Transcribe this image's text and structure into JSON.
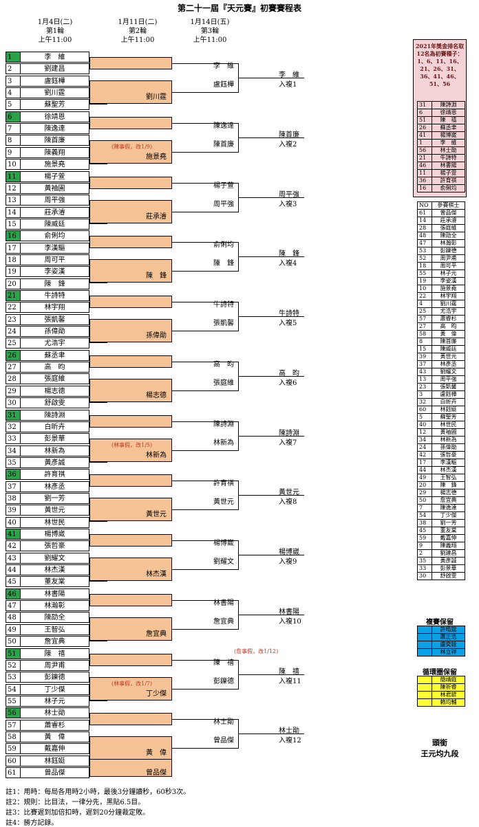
{
  "title": "第二十一屆『天元賽』初賽賽程表",
  "rounds": [
    {
      "date": "1月4日(二)",
      "name": "第1輪",
      "time": "上午11:00"
    },
    {
      "date": "1月11日(二)",
      "name": "第2輪",
      "time": "上午11:00"
    },
    {
      "date": "1月14日(五)",
      "name": "第3輪",
      "time": "上午11:00"
    }
  ],
  "players": [
    {
      "n": "1",
      "name": "李　維",
      "seed": true
    },
    {
      "n": "2",
      "name": "劉建昌"
    },
    {
      "n": "3",
      "name": "盧鈺樺"
    },
    {
      "n": "4",
      "name": "劉川霆"
    },
    {
      "n": "5",
      "name": "蘇聖芳"
    },
    {
      "n": "6",
      "name": "徐靖恩",
      "seed": true
    },
    {
      "n": "7",
      "name": "陳逸達"
    },
    {
      "n": "8",
      "name": "陳首廉"
    },
    {
      "n": "9",
      "name": "陳義翔"
    },
    {
      "n": "10",
      "name": "施景堯"
    },
    {
      "n": "11",
      "name": "楊子萱",
      "seed": true
    },
    {
      "n": "12",
      "name": "黃袖圃"
    },
    {
      "n": "13",
      "name": "周平強"
    },
    {
      "n": "14",
      "name": "莊承濬"
    },
    {
      "n": "15",
      "name": "陳威廷"
    },
    {
      "n": "16",
      "name": "俞俐均",
      "seed": true
    },
    {
      "n": "17",
      "name": "李漢驅"
    },
    {
      "n": "18",
      "name": "周可平"
    },
    {
      "n": "19",
      "name": "李姿漢"
    },
    {
      "n": "20",
      "name": "陳　鋒"
    },
    {
      "n": "21",
      "name": "牛詩特",
      "seed": true
    },
    {
      "n": "22",
      "name": "林宇翔"
    },
    {
      "n": "23",
      "name": "張凱馨"
    },
    {
      "n": "24",
      "name": "孫偉勛"
    },
    {
      "n": "25",
      "name": "尤浩宇"
    },
    {
      "n": "26",
      "name": "蘇丞聿",
      "seed": true
    },
    {
      "n": "27",
      "name": "高　昀"
    },
    {
      "n": "28",
      "name": "張庭維"
    },
    {
      "n": "29",
      "name": "楊志德"
    },
    {
      "n": "30",
      "name": "舒啟雯"
    },
    {
      "n": "31",
      "name": "陳詩淵",
      "seed": true
    },
    {
      "n": "32",
      "name": "白昕卉"
    },
    {
      "n": "33",
      "name": "彭景華"
    },
    {
      "n": "34",
      "name": "林新為"
    },
    {
      "n": "35",
      "name": "黃彥誠"
    },
    {
      "n": "36",
      "name": "許育祺",
      "seed": true
    },
    {
      "n": "37",
      "name": "林彥丞"
    },
    {
      "n": "38",
      "name": "劉一芳"
    },
    {
      "n": "39",
      "name": "黃世元"
    },
    {
      "n": "40",
      "name": "林世民"
    },
    {
      "n": "41",
      "name": "楊博崴",
      "seed": true
    },
    {
      "n": "42",
      "name": "張哲豪"
    },
    {
      "n": "43",
      "name": "劉耀文"
    },
    {
      "n": "44",
      "name": "林杰漢"
    },
    {
      "n": "45",
      "name": "董友棠"
    },
    {
      "n": "46",
      "name": "林書陽",
      "seed": true
    },
    {
      "n": "47",
      "name": "林瀚彰"
    },
    {
      "n": "48",
      "name": "陳劭全"
    },
    {
      "n": "49",
      "name": "王智弘"
    },
    {
      "n": "50",
      "name": "詹宜典"
    },
    {
      "n": "51",
      "name": "陳　禧",
      "seed": true
    },
    {
      "n": "52",
      "name": "周尹甫"
    },
    {
      "n": "53",
      "name": "彭鑠德"
    },
    {
      "n": "54",
      "name": "丁少傑"
    },
    {
      "n": "55",
      "name": "林子元"
    },
    {
      "n": "56",
      "name": "林士勛",
      "seed": true
    },
    {
      "n": "57",
      "name": "蕭睿杉"
    },
    {
      "n": "58",
      "name": "黃　偉"
    },
    {
      "n": "59",
      "name": "戴嘉伸"
    },
    {
      "n": "60",
      "name": "林鈺娗"
    },
    {
      "n": "61",
      "name": "曾品傑"
    }
  ],
  "groups": [
    {
      "r2": "劉川霆",
      "r3a": "李　維",
      "r3b": "盧鈺樺",
      "r4": "李　維",
      "adv": "入複1"
    },
    {
      "r2": "施景堯",
      "r3a": "陳逸達",
      "r3b": "陳首廉",
      "r4": "陳首廉",
      "adv": "入複2",
      "note": "(陳事假，改1/9)"
    },
    {
      "r2": "莊承濬",
      "r3a": "楊子萱",
      "r3b": "周平強",
      "r4": "周平強",
      "adv": "入複3"
    },
    {
      "r2": "陳　鋒",
      "r3a": "俞俐均",
      "r3b": "陳　鋒",
      "r4": "陳　鋒",
      "adv": "入複4"
    },
    {
      "r2": "孫偉勛",
      "r3a": "牛詩特",
      "r3b": "張凱馨",
      "r4": "牛詩特",
      "adv": "入複5"
    },
    {
      "r2": "楊志德",
      "r3a": "高　昀",
      "r3b": "張庭維",
      "r4": "高　昀",
      "adv": "入複6"
    },
    {
      "r2": "林新為",
      "r3a": "陳詩淵",
      "r3b": "林新為",
      "r4": "陳詩淵",
      "adv": "入複7",
      "note": "(林事假，改1/5)"
    },
    {
      "r2": "黃世元",
      "r3a": "許育祺",
      "r3b": "黃世元",
      "r4": "黃世元",
      "adv": "入複8"
    },
    {
      "r2": "林杰漢",
      "r3a": "楊博崴",
      "r3b": "劉耀文",
      "r4": "楊博崴",
      "adv": "入複9"
    },
    {
      "r2": "詹宜典",
      "r3a": "林書陽",
      "r3b": "詹宜典",
      "r4": "林書陽",
      "adv": "入複10",
      "note": "(詹事假，改1/12)"
    },
    {
      "r2": "丁少傑",
      "r3a": "陳　禧",
      "r3b": "彭鑠德",
      "r4": "陳　禧",
      "adv": "入複11",
      "note": "(林事假，改1/7)"
    },
    {
      "r2": "黃　偉",
      "r3a": "林士勛",
      "r3b": "曾品傑",
      "r4": "林士勛",
      "adv": "入複12"
    },
    {
      "r2": "曾品傑"
    }
  ],
  "footnotes": [
    "註1：用時：每局各用時2小時，最後3分鐘讀秒，60秒3次。",
    "註2：規則：比目法，一律分先，黑貼6.5目。",
    "註3：比賽遲到加倍扣時，遲到20分鐘裁定敗。",
    "註4：勝方記錄。"
  ],
  "seed_box": {
    "header": [
      "2021年獎金排名取",
      "12名為初賽種子：",
      "1、6、11、16、",
      "21、26、31、",
      "36、41、46、",
      "51、56"
    ],
    "rows": [
      [
        "31",
        "陳詩淵"
      ],
      [
        "6",
        "徐靖恩"
      ],
      [
        "51",
        "陳　禧"
      ],
      [
        "26",
        "蘇丞聿"
      ],
      [
        "41",
        "楊博崴"
      ],
      [
        "1",
        "李　維"
      ],
      [
        "56",
        "林士勛"
      ],
      [
        "21",
        "牛詩特"
      ],
      [
        "46",
        "林書陽"
      ],
      [
        "11",
        "楊子萱"
      ],
      [
        "36",
        "許育祺"
      ],
      [
        "16",
        "俞俐均"
      ]
    ]
  },
  "participants": {
    "header": [
      "NO",
      "參賽棋士"
    ],
    "rows": [
      [
        "61",
        "曾品傑"
      ],
      [
        "14",
        "莊承濬"
      ],
      [
        "28",
        "張庭維"
      ],
      [
        "48",
        "陳劭全"
      ],
      [
        "47",
        "林瀚彰"
      ],
      [
        "53",
        "彭鑠德"
      ],
      [
        "52",
        "周尹甫"
      ],
      [
        "18",
        "周可平"
      ],
      [
        "55",
        "林子元"
      ],
      [
        "19",
        "李姿漢"
      ],
      [
        "10",
        "施景堯"
      ],
      [
        "22",
        "林宇翔"
      ],
      [
        "4",
        "劉川霆"
      ],
      [
        "25",
        "尤浩宇"
      ],
      [
        "57",
        "蕭睿杉"
      ],
      [
        "27",
        "高　昀"
      ],
      [
        "58",
        "黃　偉"
      ],
      [
        "8",
        "陳首廉"
      ],
      [
        "15",
        "陳威廷"
      ],
      [
        "39",
        "黃世元"
      ],
      [
        "37",
        "林彥丞"
      ],
      [
        "43",
        "劉耀文"
      ],
      [
        "13",
        "周平強"
      ],
      [
        "23",
        "張凱馨"
      ],
      [
        "3",
        "盧鈺樺"
      ],
      [
        "32",
        "白昕卉"
      ],
      [
        "60",
        "林鈺娗"
      ],
      [
        "5",
        "蘇聖芳"
      ],
      [
        "40",
        "林世民"
      ],
      [
        "12",
        "黃袖圃"
      ],
      [
        "34",
        "林新為"
      ],
      [
        "24",
        "孫偉勛"
      ],
      [
        "42",
        "張哲豪"
      ],
      [
        "17",
        "李漢驅"
      ],
      [
        "44",
        "林杰漢"
      ],
      [
        "49",
        "王智弘"
      ],
      [
        "20",
        "陳　鋒"
      ],
      [
        "29",
        "楊志德"
      ],
      [
        "50",
        "詹宜典"
      ],
      [
        "7",
        "陳逸達"
      ],
      [
        "54",
        "丁少傑"
      ],
      [
        "38",
        "劉一芳"
      ],
      [
        "45",
        "董友棠"
      ],
      [
        "59",
        "戴嘉伸"
      ],
      [
        "9",
        "陳義翔"
      ],
      [
        "2",
        "劉建昌"
      ],
      [
        "35",
        "黃彥誠"
      ],
      [
        "33",
        "彭景華"
      ],
      [
        "30",
        "舒啟雯"
      ]
    ]
  },
  "reserve_fu": {
    "title": "複賽保留",
    "rows": [
      "許皓鋐",
      "蕭正浩",
      "盧奕銓",
      "林立祥"
    ],
    "color": "#0aa0e6"
  },
  "reserve_xun": {
    "title": "循環圈保留",
    "rows": [
      "簡靖庭",
      "陳祈睿",
      "林君諺",
      "賴均輔"
    ],
    "color": "#ffff33"
  },
  "honor": {
    "title": "頭銜",
    "name": "王元均九段"
  },
  "colors": {
    "seed": "#2aa24a",
    "orange": "#f5c396",
    "blue": "#0aa0e6",
    "pink": "#f3d3d6",
    "note": "#c0392b"
  }
}
